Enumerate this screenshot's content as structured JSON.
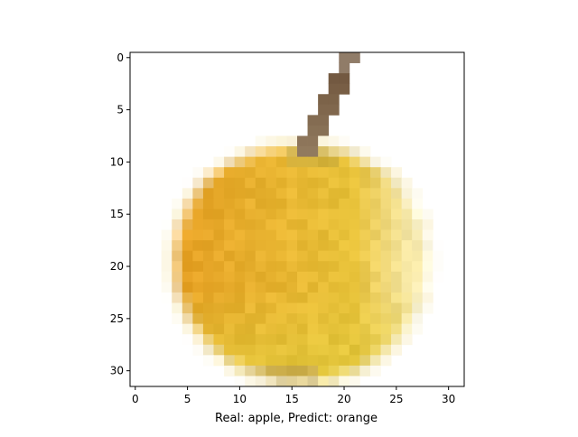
{
  "figure": {
    "caption": "Real: apple, Predict: orange"
  },
  "axes": {
    "x_ticks": [
      "0",
      "5",
      "10",
      "15",
      "20",
      "25",
      "30"
    ],
    "y_ticks": [
      "0",
      "5",
      "10",
      "15",
      "20",
      "25",
      "30"
    ],
    "x_range": [
      -0.5,
      31.5
    ],
    "y_range": [
      31.5,
      -0.5
    ]
  },
  "image": {
    "subject": "yellow apple with brown stem (32x32 pixelated)",
    "colors": {
      "background": "#ffffff",
      "apple_main": "#e8c23a",
      "apple_orange": "#e7a326",
      "apple_highlight": "#f6e7a4",
      "stem": "#6b5038",
      "shadow_base": "#b89a55"
    }
  }
}
